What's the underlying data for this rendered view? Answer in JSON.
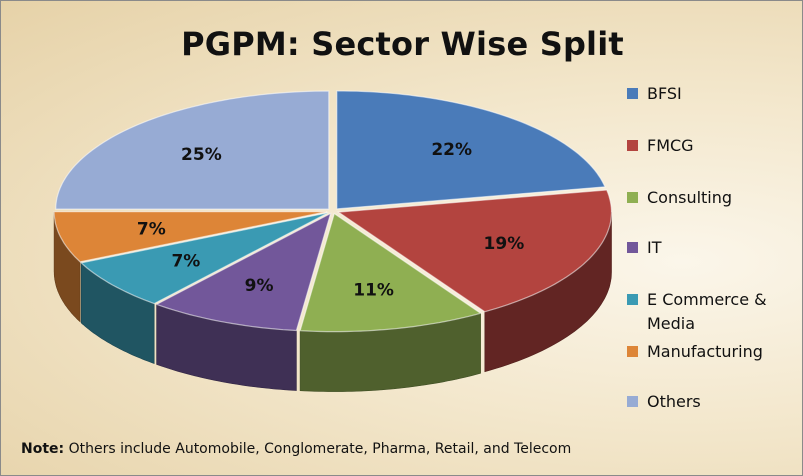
{
  "chart_data": {
    "type": "pie",
    "title": "PGPM: Sector Wise Split",
    "categories": [
      "BFSI",
      "FMCG",
      "Consulting",
      "IT",
      "E Commerce & Media",
      "Manufacturing",
      "Others"
    ],
    "values": [
      22,
      19,
      11,
      9,
      7,
      7,
      25
    ],
    "data_labels": [
      "22%",
      "19%",
      "11%",
      "9%",
      "7%",
      "7%",
      "25%"
    ],
    "colors": [
      "#4a7bb9",
      "#b3443f",
      "#8faf52",
      "#72579a",
      "#3a9ab3",
      "#dd8537",
      "#97abd4"
    ],
    "legend_position": "right",
    "style": "3d-exploded"
  },
  "legend": {
    "items": [
      {
        "label_lines": [
          "BFSI"
        ],
        "color": "#4a7bb9"
      },
      {
        "label_lines": [
          "FMCG"
        ],
        "color": "#b3443f"
      },
      {
        "label_lines": [
          "Consulting"
        ],
        "color": "#8faf52"
      },
      {
        "label_lines": [
          "IT"
        ],
        "color": "#72579a"
      },
      {
        "label_lines": [
          "E Commerce &",
          "Media"
        ],
        "color": "#3a9ab3"
      },
      {
        "label_lines": [
          "Manufacturing"
        ],
        "color": "#dd8537"
      },
      {
        "label_lines": [
          "Others"
        ],
        "color": "#97abd4"
      }
    ]
  },
  "note": {
    "prefix": "Note:",
    "text": " Others include Automobile, Conglomerate, Pharma, Retail, and Telecom"
  }
}
